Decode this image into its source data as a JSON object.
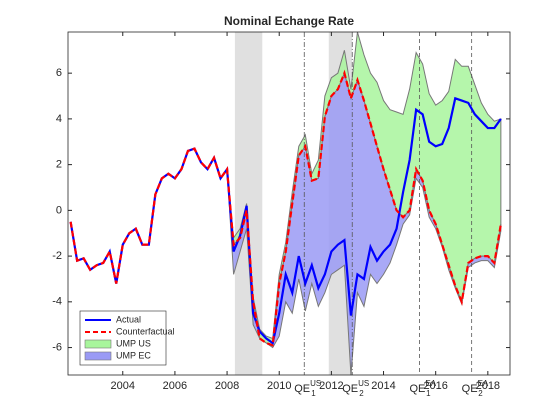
{
  "chart_data": {
    "type": "line",
    "title": "Nominal Echange Rate",
    "xlim": [
      2001.9,
      2018.85
    ],
    "ylim": [
      -7.2,
      7.8
    ],
    "xticks": [
      2004,
      2006,
      2008,
      2010,
      2012,
      2014,
      2016,
      2018
    ],
    "yticks": [
      -6,
      -4,
      -2,
      0,
      2,
      4,
      6
    ],
    "legend": "lower left",
    "x": [
      2002,
      2002.25,
      2002.5,
      2002.75,
      2003,
      2003.25,
      2003.5,
      2003.75,
      2004,
      2004.25,
      2004.5,
      2004.75,
      2005,
      2005.25,
      2005.5,
      2005.75,
      2006,
      2006.25,
      2006.5,
      2006.75,
      2007,
      2007.25,
      2007.5,
      2007.75,
      2008,
      2008.25,
      2008.5,
      2008.75,
      2009,
      2009.25,
      2009.5,
      2009.75,
      2010,
      2010.25,
      2010.5,
      2010.75,
      2011,
      2011.25,
      2011.5,
      2011.75,
      2012,
      2012.25,
      2012.5,
      2012.75,
      2013,
      2013.25,
      2013.5,
      2013.75,
      2014,
      2014.25,
      2014.5,
      2014.75,
      2015,
      2015.25,
      2015.5,
      2015.75,
      2016,
      2016.25,
      2016.5,
      2016.75,
      2017,
      2017.25,
      2017.5,
      2017.75,
      2018,
      2018.25,
      2018.5
    ],
    "areas": [
      {
        "name": "UMP US",
        "color": "#a8f59c",
        "upper": [
          null,
          null,
          null,
          null,
          null,
          null,
          null,
          null,
          null,
          null,
          null,
          null,
          null,
          null,
          null,
          null,
          null,
          null,
          null,
          null,
          null,
          null,
          null,
          null,
          1.8,
          -1.2,
          -0.8,
          0.3,
          -3.8,
          -5.2,
          -5.5,
          -5.6,
          -2.8,
          -1.4,
          0.8,
          2.8,
          3.3,
          1.6,
          2.2,
          5.0,
          5.8,
          6.0,
          7.0,
          5.3,
          7.8,
          6.8,
          6.0,
          5.6,
          4.8,
          4.4,
          4.3,
          4.2,
          5.3,
          6.9,
          6.4,
          5.1,
          4.6,
          4.8,
          5.2,
          6.6,
          6.3,
          6.3,
          5.5,
          4.7,
          4.2,
          3.9,
          4.0
        ],
        "lower": [
          null,
          null,
          null,
          null,
          null,
          null,
          null,
          null,
          null,
          null,
          null,
          null,
          null,
          null,
          null,
          null,
          null,
          null,
          null,
          null,
          null,
          null,
          null,
          null,
          1.8,
          -1.5,
          -1.2,
          0.0,
          -4.0,
          -5.6,
          -5.8,
          -5.9,
          -3.2,
          -1.8,
          0.3,
          2.4,
          2.8,
          1.3,
          1.4,
          4.1,
          5.0,
          5.3,
          6.0,
          4.9,
          5.7,
          4.8,
          3.8,
          2.8,
          1.8,
          0.9,
          0.0,
          -0.3,
          0.0,
          1.8,
          1.3,
          0.0,
          -0.6,
          -1.5,
          -2.4,
          -3.3,
          -4.0,
          -2.3,
          -2.1,
          -2.0,
          -2.0,
          -2.3,
          -0.6
        ]
      },
      {
        "name": "UMP EC",
        "color": "#9a9af5",
        "upper": [
          null,
          null,
          null,
          null,
          null,
          null,
          null,
          null,
          null,
          null,
          null,
          null,
          null,
          null,
          null,
          null,
          null,
          null,
          null,
          null,
          null,
          null,
          null,
          null,
          1.8,
          -1.5,
          -1.2,
          0.0,
          -4.0,
          -5.6,
          -5.8,
          -5.9,
          -3.2,
          -1.8,
          0.3,
          2.4,
          2.8,
          1.3,
          1.4,
          4.1,
          5.0,
          5.3,
          6.0,
          4.9,
          5.7,
          4.8,
          3.8,
          2.8,
          1.8,
          0.9,
          0.0,
          -0.3,
          0.0,
          1.8,
          1.3,
          0.0,
          -0.6,
          -1.5,
          -2.4,
          -3.3,
          -4.0,
          -2.3,
          -2.1,
          -2.0,
          -2.0,
          -2.3,
          -0.6
        ],
        "lower": [
          null,
          null,
          null,
          null,
          null,
          null,
          null,
          null,
          null,
          null,
          null,
          null,
          null,
          null,
          null,
          null,
          null,
          null,
          null,
          null,
          null,
          null,
          null,
          null,
          1.8,
          -2.8,
          -1.8,
          -0.8,
          -5.0,
          -5.6,
          -5.8,
          -6.0,
          -5.5,
          -4.0,
          -4.5,
          -3.0,
          -4.4,
          -3.2,
          -4.2,
          -3.6,
          -2.8,
          -2.6,
          -2.4,
          -7.2,
          -3.6,
          -4.2,
          -2.8,
          -3.2,
          -2.8,
          -2.3,
          -1.5,
          -0.6,
          -0.2,
          1.4,
          1.0,
          -0.3,
          -0.8,
          -1.6,
          -2.6,
          -3.4,
          -4.1,
          -2.5,
          -2.3,
          -2.2,
          -2.2,
          -2.5,
          -0.9
        ]
      }
    ],
    "series": [
      {
        "name": "Actual",
        "color": "#0000ff",
        "style": "solid",
        "values": [
          -0.5,
          -2.2,
          -2.1,
          -2.6,
          -2.4,
          -2.3,
          -1.8,
          -3.2,
          -1.5,
          -1.0,
          -0.8,
          -1.5,
          -1.5,
          0.7,
          1.4,
          1.6,
          1.4,
          1.8,
          2.6,
          2.7,
          2.1,
          1.8,
          2.3,
          1.4,
          1.8,
          -1.8,
          -1.1,
          0.2,
          -4.5,
          -5.3,
          -5.6,
          -5.8,
          -4.5,
          -2.8,
          -3.6,
          -2.0,
          -3.2,
          -2.4,
          -3.4,
          -2.8,
          -1.8,
          -1.5,
          -1.3,
          -4.6,
          -2.8,
          -3.0,
          -1.6,
          -2.2,
          -1.8,
          -1.5,
          -0.8,
          0.8,
          2.2,
          4.4,
          4.2,
          3.0,
          2.8,
          2.9,
          3.6,
          4.9,
          4.8,
          4.7,
          4.2,
          3.9,
          3.6,
          3.6,
          4.0
        ]
      },
      {
        "name": "Counterfactual",
        "color": "#ff0000",
        "style": "dashed",
        "values": [
          -0.5,
          -2.2,
          -2.1,
          -2.6,
          -2.4,
          -2.3,
          -1.8,
          -3.2,
          -1.5,
          -1.0,
          -0.8,
          -1.5,
          -1.5,
          0.7,
          1.4,
          1.6,
          1.4,
          1.8,
          2.6,
          2.7,
          2.1,
          1.8,
          2.3,
          1.4,
          1.8,
          -1.5,
          -1.2,
          0.0,
          -4.0,
          -5.6,
          -5.8,
          -5.9,
          -3.2,
          -1.8,
          0.3,
          2.4,
          2.8,
          1.3,
          1.4,
          4.1,
          5.0,
          5.3,
          6.0,
          4.9,
          5.7,
          4.8,
          3.8,
          2.8,
          1.8,
          0.9,
          0.0,
          -0.3,
          0.0,
          1.8,
          1.3,
          0.0,
          -0.6,
          -1.5,
          -2.4,
          -3.3,
          -4.0,
          -2.3,
          -2.1,
          -2.0,
          -2.0,
          -2.3,
          -0.6
        ]
      }
    ],
    "shaded": [
      [
        2008.3,
        2009.35
      ],
      [
        2011.9,
        2012.8
      ]
    ],
    "events": [
      {
        "x": 2010.96,
        "style": "dashdot",
        "label": {
          "base": "QE",
          "sub": "1",
          "sup": "US"
        }
      },
      {
        "x": 2012.8,
        "style": "dashdot",
        "label": {
          "base": "QE",
          "sub": "2",
          "sup": "US"
        }
      },
      {
        "x": 2015.38,
        "style": "dashed",
        "label": {
          "base": "QE",
          "sub": "1",
          "sup": "EA"
        }
      },
      {
        "x": 2017.38,
        "style": "dashed",
        "label": {
          "base": "QE",
          "sub": "2",
          "sup": "EA"
        }
      }
    ]
  }
}
